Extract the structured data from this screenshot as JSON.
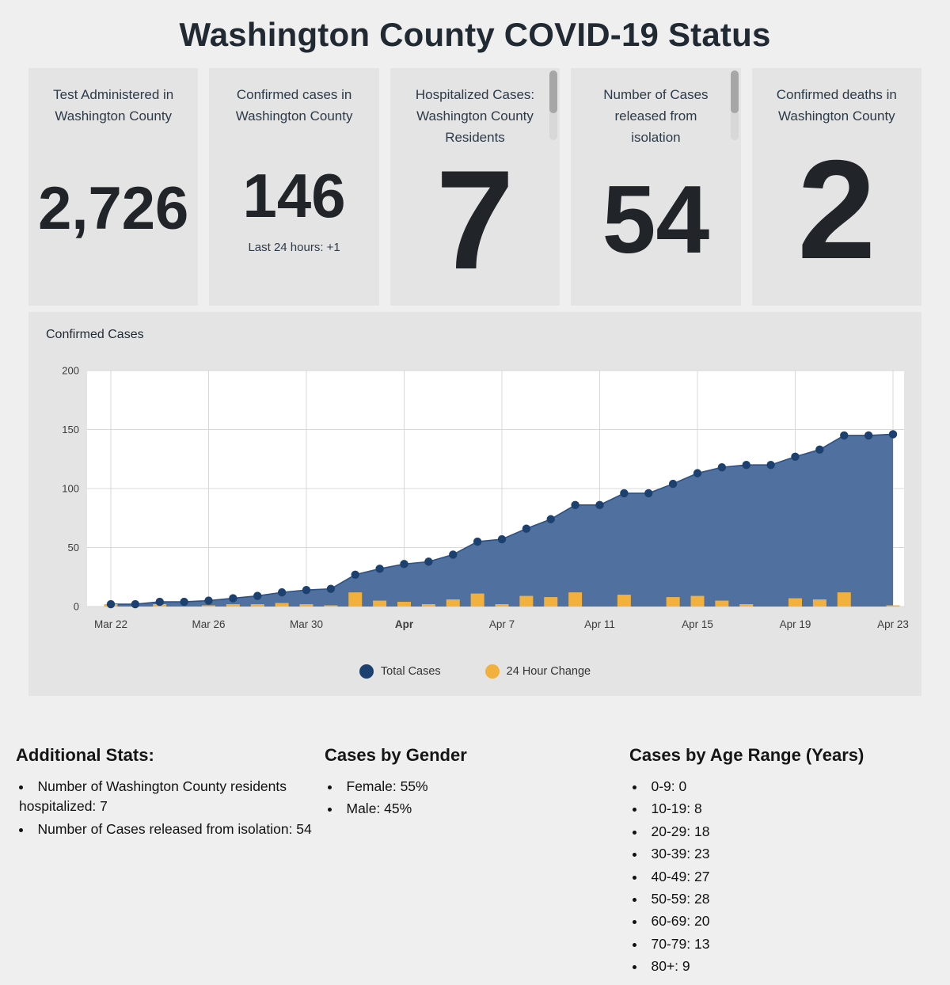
{
  "page": {
    "title": "Washington County COVID-19 Status"
  },
  "stat_cards": [
    {
      "label": "Test Administered in Washington County",
      "value": "2,726"
    },
    {
      "label": "Confirmed cases in Washington County",
      "value": "146",
      "sublabel": "Last 24 hours: +1"
    },
    {
      "label": "Hospitalized Cases: Washington County Residents",
      "value": "7"
    },
    {
      "label": "Number of Cases released from isolation",
      "value": "54"
    },
    {
      "label": "Confirmed deaths in Washington County",
      "value": "2"
    }
  ],
  "chart_panel": {
    "title": "Confirmed Cases"
  },
  "chart_data": {
    "type": "area",
    "title": "Confirmed Cases",
    "x": [
      "Mar 22",
      "Mar 23",
      "Mar 24",
      "Mar 25",
      "Mar 26",
      "Mar 27",
      "Mar 28",
      "Mar 29",
      "Mar 30",
      "Mar 31",
      "Apr 1",
      "Apr 2",
      "Apr 3",
      "Apr 4",
      "Apr 5",
      "Apr 6",
      "Apr 7",
      "Apr 8",
      "Apr 9",
      "Apr 10",
      "Apr 11",
      "Apr 12",
      "Apr 13",
      "Apr 14",
      "Apr 15",
      "Apr 16",
      "Apr 17",
      "Apr 18",
      "Apr 19",
      "Apr 20",
      "Apr 21",
      "Apr 22",
      "Apr 23"
    ],
    "series": [
      {
        "name": "Total Cases",
        "render": "area-line-scatter",
        "values": [
          2,
          2,
          4,
          4,
          5,
          7,
          9,
          12,
          14,
          15,
          27,
          32,
          36,
          38,
          44,
          55,
          57,
          66,
          74,
          86,
          86,
          96,
          96,
          104,
          113,
          118,
          120,
          120,
          127,
          133,
          145,
          145,
          146
        ]
      },
      {
        "name": "24 Hour Change",
        "render": "bar",
        "values": [
          2,
          0,
          2,
          0,
          1,
          2,
          2,
          3,
          2,
          1,
          12,
          5,
          4,
          2,
          6,
          11,
          2,
          9,
          8,
          12,
          0,
          10,
          0,
          8,
          9,
          5,
          2,
          0,
          7,
          6,
          12,
          0,
          1
        ]
      }
    ],
    "ylim": [
      0,
      200
    ],
    "y_ticks": [
      0,
      50,
      100,
      150,
      200
    ],
    "x_ticks": [
      {
        "index": 0,
        "label": "Mar 22"
      },
      {
        "index": 4,
        "label": "Mar 26"
      },
      {
        "index": 8,
        "label": "Mar 30"
      },
      {
        "index": 12,
        "label": "Apr",
        "bold": true
      },
      {
        "index": 16,
        "label": "Apr 7"
      },
      {
        "index": 20,
        "label": "Apr 11"
      },
      {
        "index": 24,
        "label": "Apr 15"
      },
      {
        "index": 28,
        "label": "Apr 19"
      },
      {
        "index": 32,
        "label": "Apr 23"
      }
    ],
    "grid": true,
    "legend_position": "bottom"
  },
  "legend": [
    {
      "label": "Total Cases",
      "color": "#1c4170"
    },
    {
      "label": "24 Hour Change",
      "color": "#f2b03c"
    }
  ],
  "sections": {
    "additional_stats": {
      "heading": "Additional Stats:",
      "items": [
        "Number of Washington County residents hospitalized: 7",
        "Number of Cases released from isolation: 54"
      ]
    },
    "gender": {
      "heading": "Cases by Gender",
      "items": [
        "Female: 55%",
        "Male: 45%"
      ]
    },
    "age": {
      "heading": "Cases by Age Range (Years)",
      "items": [
        "0-9: 0",
        "10-19: 8",
        "20-29: 18",
        "30-39: 23",
        "40-49: 27",
        "50-59: 28",
        "60-69: 20",
        "70-79: 13",
        "80+: 9"
      ]
    }
  },
  "colors": {
    "page_bg": "#efefef",
    "card_bg": "#e4e4e4",
    "plot_bg": "#ffffff",
    "grid": "#d8d8d8",
    "area": "#50719f",
    "line": "#2d5182",
    "dot": "#1c4170",
    "bar": "#f2b03c",
    "tick_text": "#3c3c3c"
  }
}
